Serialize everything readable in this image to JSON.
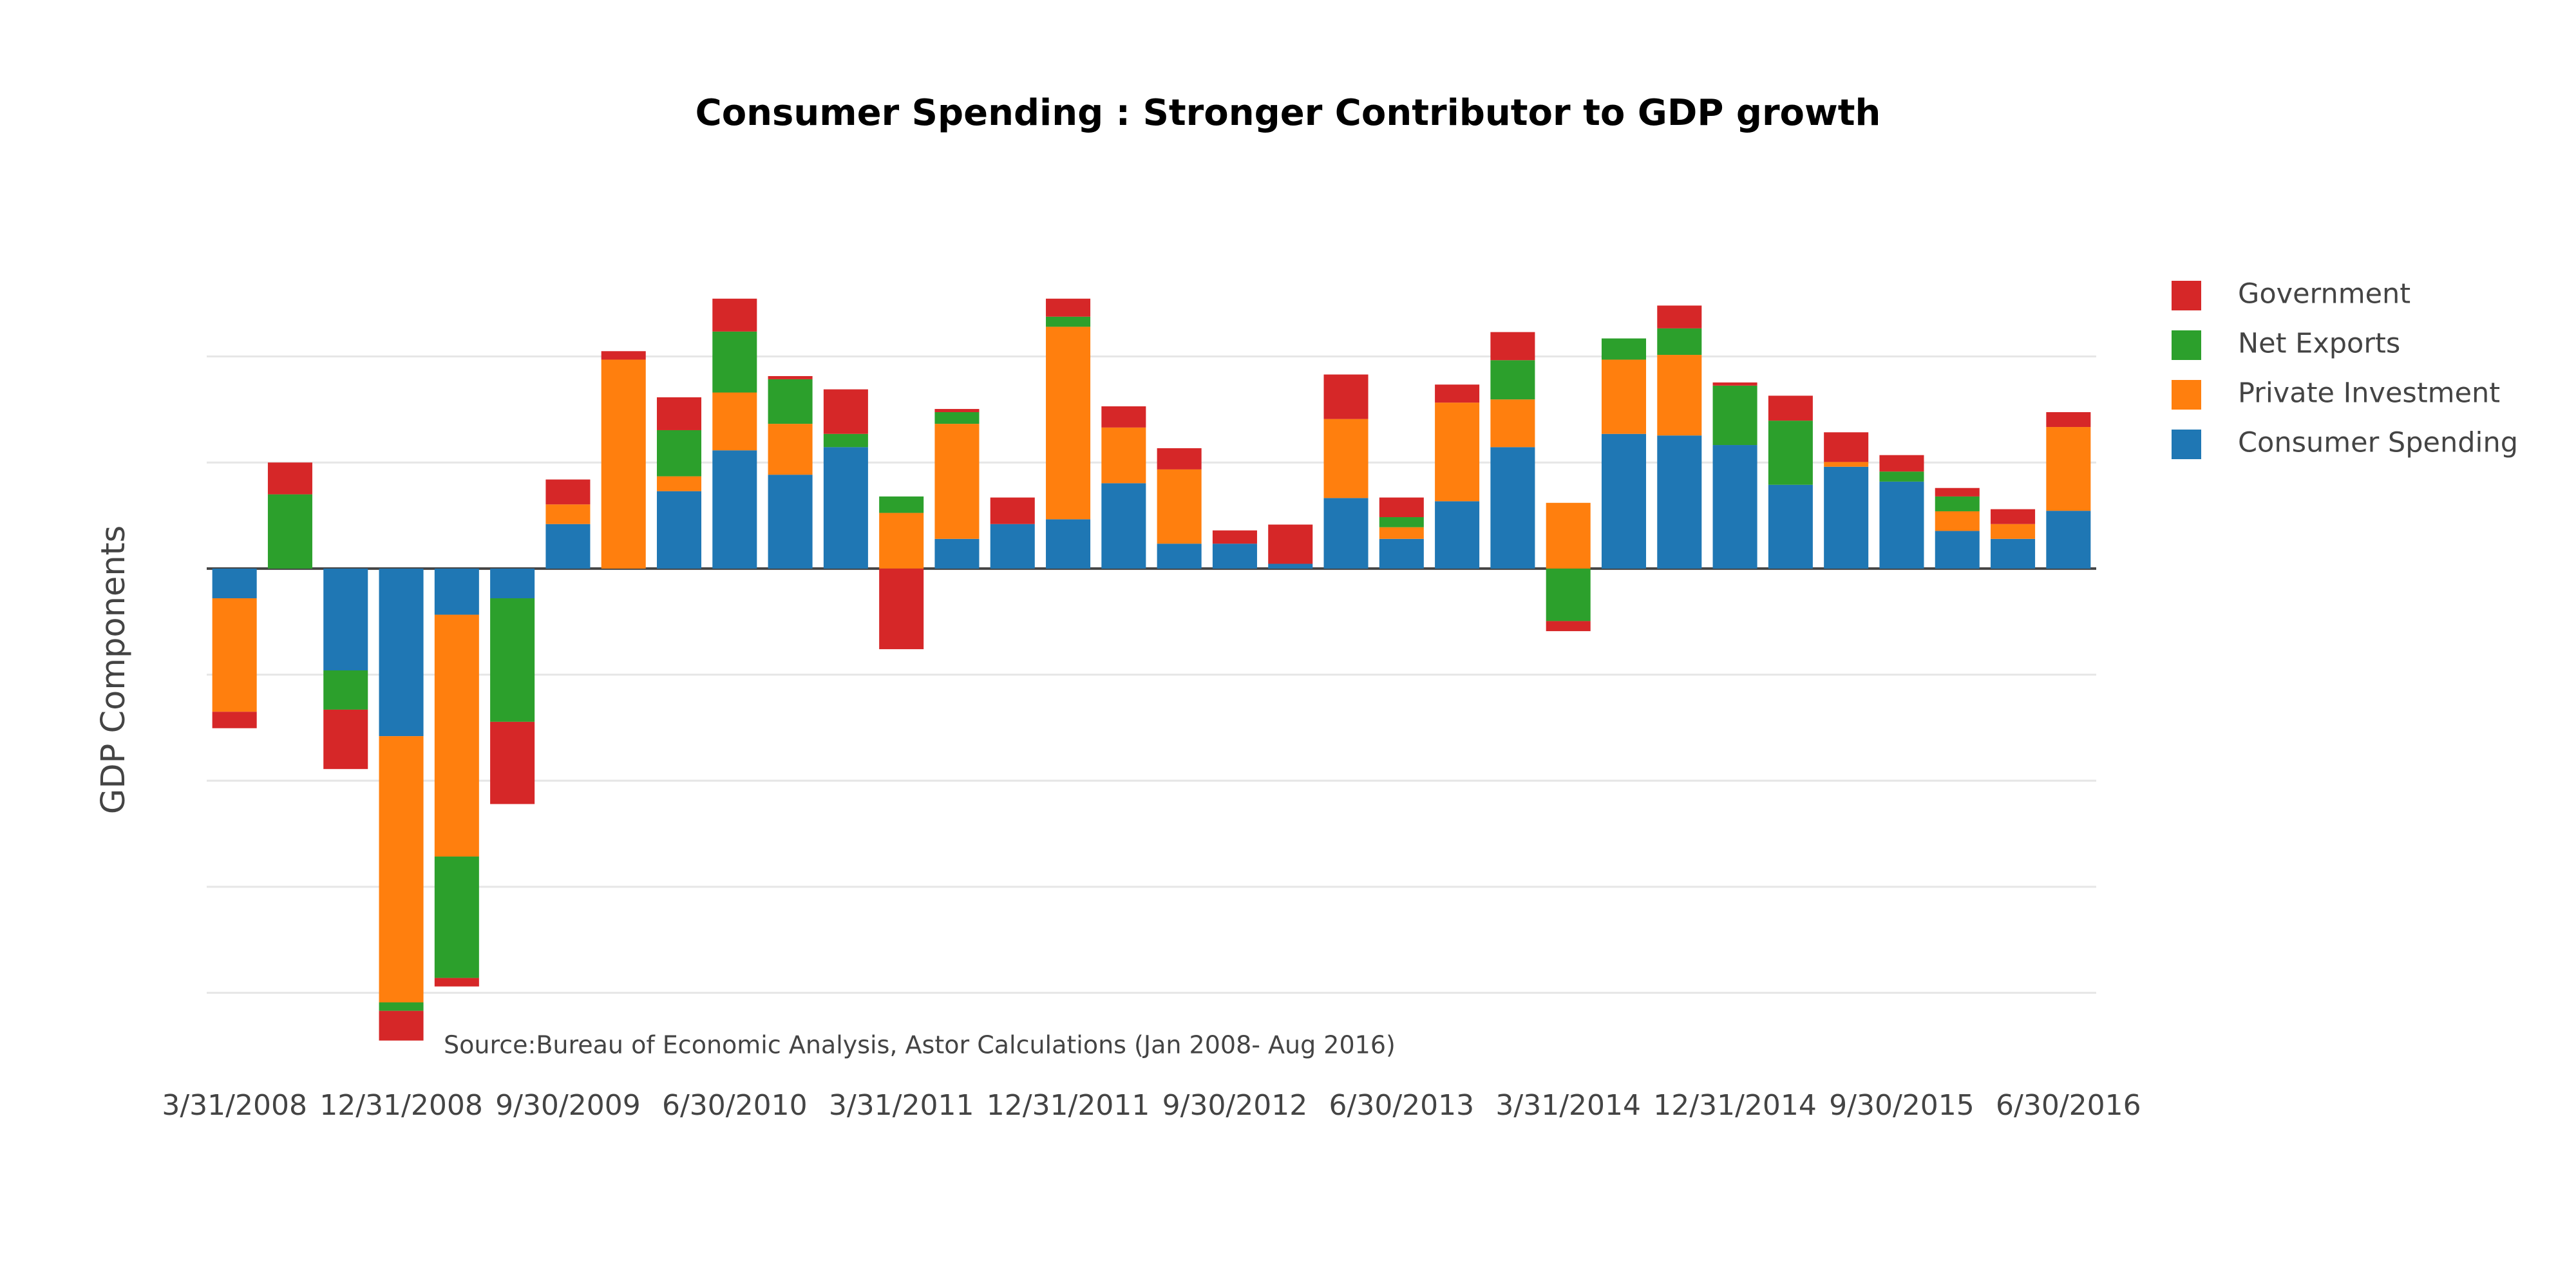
{
  "chart_data": {
    "type": "bar",
    "barmode": "relative",
    "title": "Consumer Spending : Stronger Contributor to GDP growth",
    "y_label": "GDP Components",
    "annotation": "Source:Bureau of Economic Analysis, Astor Calculations (Jan 2008- Aug 2016)",
    "categories": [
      "3/31/2008",
      null,
      null,
      "12/31/2008",
      null,
      null,
      "9/30/2009",
      null,
      null,
      "6/30/2010",
      null,
      null,
      "3/31/2011",
      null,
      null,
      "12/31/2011",
      null,
      null,
      "9/30/2012",
      null,
      null,
      "6/30/2013",
      null,
      null,
      "3/31/2014",
      null,
      null,
      "12/31/2014",
      null,
      null,
      "9/30/2015",
      null,
      null,
      "6/30/2016"
    ],
    "series": [
      {
        "name": "Consumer Spending",
        "color": "#1f77b4",
        "values": [
          -0.56,
          0,
          -1.92,
          -3.16,
          -0.87,
          -0.56,
          0.84,
          0,
          1.46,
          2.23,
          1.77,
          2.29,
          0,
          0.56,
          0.84,
          0.93,
          1.61,
          0.47,
          0.47,
          0.09,
          1.33,
          0.56,
          1.27,
          2.29,
          0,
          2.54,
          2.51,
          2.33,
          1.58,
          1.92,
          1.64,
          0.71,
          0.56,
          1.09
        ]
      },
      {
        "name": "Private Investment",
        "color": "#ff7f0e",
        "values": [
          -2.14,
          0,
          0,
          -5.02,
          -4.56,
          0,
          0.37,
          3.94,
          0.28,
          1.09,
          0.96,
          0,
          1.05,
          2.17,
          0,
          3.63,
          1.05,
          1.4,
          0,
          0,
          1.49,
          0.22,
          1.86,
          0.9,
          1.24,
          1.4,
          1.52,
          0,
          0,
          0.09,
          0,
          0.37,
          0.28,
          1.58
        ]
      },
      {
        "name": "Net Exports",
        "color": "#2ca02c",
        "values": [
          0,
          1.4,
          -0.74,
          -0.16,
          -2.29,
          -2.33,
          0,
          0,
          0.87,
          1.15,
          0.84,
          0.25,
          0.31,
          0.22,
          0,
          0.19,
          0,
          0,
          0,
          0,
          0,
          0.19,
          0,
          0.74,
          -0.99,
          0.4,
          0.5,
          1.12,
          1.21,
          0,
          0.19,
          0.28,
          0,
          0
        ]
      },
      {
        "name": "Government",
        "color": "#d62728",
        "values": [
          -0.31,
          0.6,
          -1.12,
          -0.56,
          -0.16,
          -1.55,
          0.47,
          0.16,
          0.62,
          0.62,
          0.06,
          0.84,
          -1.52,
          0.06,
          0.5,
          0.34,
          0.4,
          0.4,
          0.25,
          0.74,
          0.84,
          0.37,
          0.34,
          0.53,
          -0.19,
          0,
          0.43,
          0.06,
          0.47,
          0.56,
          0.31,
          0.16,
          0.28,
          0.28
        ]
      }
    ],
    "ylim": [
      -9,
      5.5
    ],
    "yticks": [
      -8,
      -6,
      -4,
      -2,
      0,
      2,
      4
    ],
    "ytick_labels": false,
    "grid": true,
    "legend": "right"
  }
}
